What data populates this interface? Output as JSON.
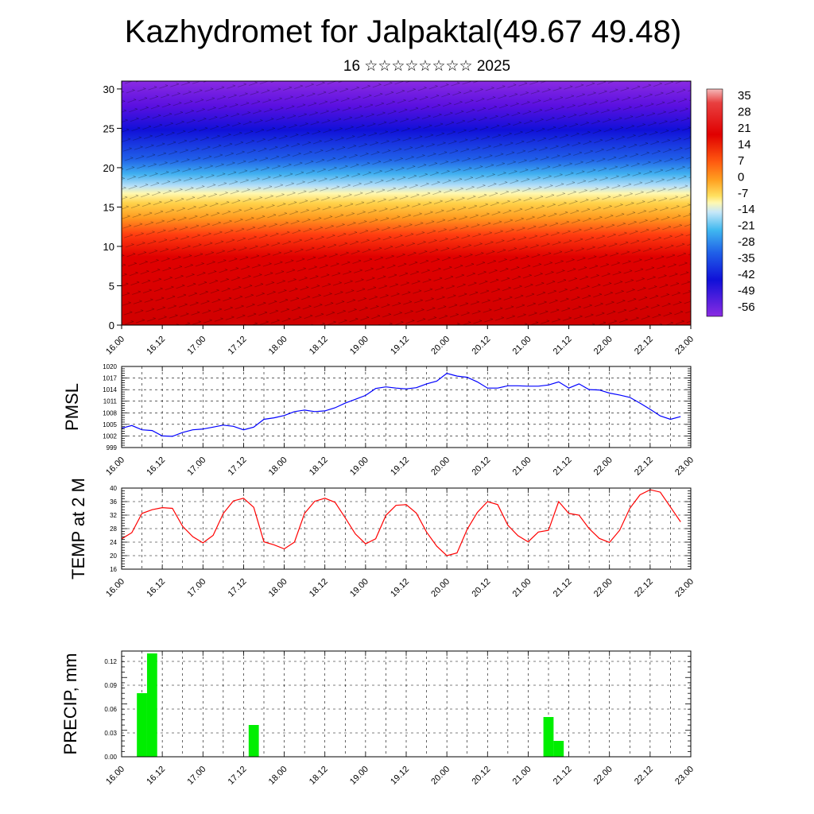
{
  "header": {
    "title": "Kazhydromet for Jalpaktal(49.67 49.48)",
    "subtitle": "16 ☆☆☆☆☆☆☆☆ 2025"
  },
  "colors": {
    "pmsl_line": "#0000ff",
    "temp_line": "#ff0000",
    "precip_bar": "#00ee00",
    "colormap": [
      "#8a2be2",
      "#4b0082",
      "#0000cd",
      "#1e90ff",
      "#87cefa",
      "#fff8b0",
      "#ffd700",
      "#ff8c00",
      "#e00000",
      "#f4a0a0"
    ]
  },
  "time_ticks": [
    "16.00",
    "16.12",
    "17.00",
    "17.12",
    "18.00",
    "18.12",
    "19.00",
    "19.12",
    "20.00",
    "20.12",
    "21.00",
    "21.12",
    "22.00",
    "22.12",
    "23.00"
  ],
  "chart_data": [
    {
      "id": "cross_section",
      "type": "heatmap",
      "yticks": [
        "0",
        "5",
        "10",
        "15",
        "20",
        "25",
        "30"
      ],
      "ylim": [
        0,
        31
      ],
      "colorbar_labels": [
        "35",
        "28",
        "21",
        "14",
        "7",
        "0",
        "-7",
        "-14",
        "-21",
        "-28",
        "-35",
        "-42",
        "-49",
        "-56"
      ]
    },
    {
      "id": "pmsl",
      "type": "line",
      "ylabel": "PMSL",
      "yticks": [
        "1020",
        "1017",
        "1014",
        "1011",
        "1008",
        "1005",
        "1002",
        "999"
      ],
      "ylim": [
        999,
        1020
      ],
      "x": [
        0,
        3,
        6,
        9,
        12,
        15,
        18,
        21,
        24,
        27,
        30,
        33,
        36,
        39,
        42,
        45,
        48,
        51,
        54,
        57,
        60,
        63,
        66,
        69,
        72,
        75,
        78,
        81,
        84,
        87,
        90,
        93,
        96,
        99,
        102,
        105,
        108,
        111,
        114,
        117,
        120,
        123,
        126,
        129,
        132,
        135,
        138,
        141,
        144,
        147,
        150,
        153,
        156,
        159,
        162,
        165
      ],
      "values": [
        1004,
        1004.7,
        1003.6,
        1003.4,
        1002,
        1001.9,
        1002.9,
        1003.6,
        1003.8,
        1004.3,
        1004.8,
        1004.5,
        1003.6,
        1004.3,
        1006.3,
        1006.7,
        1007.3,
        1008.3,
        1008.7,
        1008.3,
        1008.5,
        1009.3,
        1010.5,
        1011.5,
        1012.5,
        1014.3,
        1014.7,
        1014.4,
        1014.2,
        1014.5,
        1015.5,
        1016.2,
        1018.2,
        1017.5,
        1017.2,
        1016,
        1014.4,
        1014.4,
        1015,
        1015,
        1014.9,
        1014.9,
        1015.2,
        1016,
        1014.4,
        1015.5,
        1014,
        1013.9,
        1013.1,
        1012.6,
        1012,
        1010.5,
        1008.9,
        1007.2,
        1006.3,
        1007
      ]
    },
    {
      "id": "temp2m",
      "type": "line",
      "ylabel": "TEMP at 2 M",
      "yticks": [
        "40",
        "36",
        "32",
        "28",
        "24",
        "20",
        "16"
      ],
      "ylim": [
        16,
        40
      ],
      "x": [
        0,
        3,
        6,
        9,
        12,
        15,
        18,
        21,
        24,
        27,
        30,
        33,
        36,
        39,
        42,
        45,
        48,
        51,
        54,
        57,
        60,
        63,
        66,
        69,
        72,
        75,
        78,
        81,
        84,
        87,
        90,
        93,
        96,
        99,
        102,
        105,
        108,
        111,
        114,
        117,
        120,
        123,
        126,
        129,
        132,
        135,
        138,
        141,
        144,
        147,
        150,
        153,
        156,
        159,
        162,
        165
      ],
      "values": [
        25,
        26.8,
        32.5,
        33.6,
        34.2,
        34,
        28.7,
        25.6,
        23.8,
        26,
        32.5,
        36.2,
        37,
        34.3,
        24.1,
        23.2,
        22,
        24,
        32.5,
        36.1,
        37,
        35.8,
        31.2,
        26.4,
        23.5,
        25,
        31.9,
        34.9,
        35.1,
        32.6,
        27,
        22.8,
        20,
        20.8,
        27.8,
        32.8,
        36,
        35.1,
        29,
        25.9,
        24.1,
        27,
        27.5,
        36,
        32.5,
        32,
        28,
        25.1,
        23.9,
        27.5,
        34,
        38,
        39.5,
        38.8,
        34.4,
        30
      ]
    },
    {
      "id": "precip",
      "type": "bar",
      "ylabel": "PRECIP, mm",
      "yticks": [
        "0.12",
        "0.09",
        "0.06",
        "0.03",
        "0.00"
      ],
      "ylim": [
        0,
        0.133
      ],
      "x": [
        6,
        9,
        39,
        126,
        129
      ],
      "values": [
        0.08,
        0.13,
        0.04,
        0.05,
        0.02
      ]
    }
  ]
}
